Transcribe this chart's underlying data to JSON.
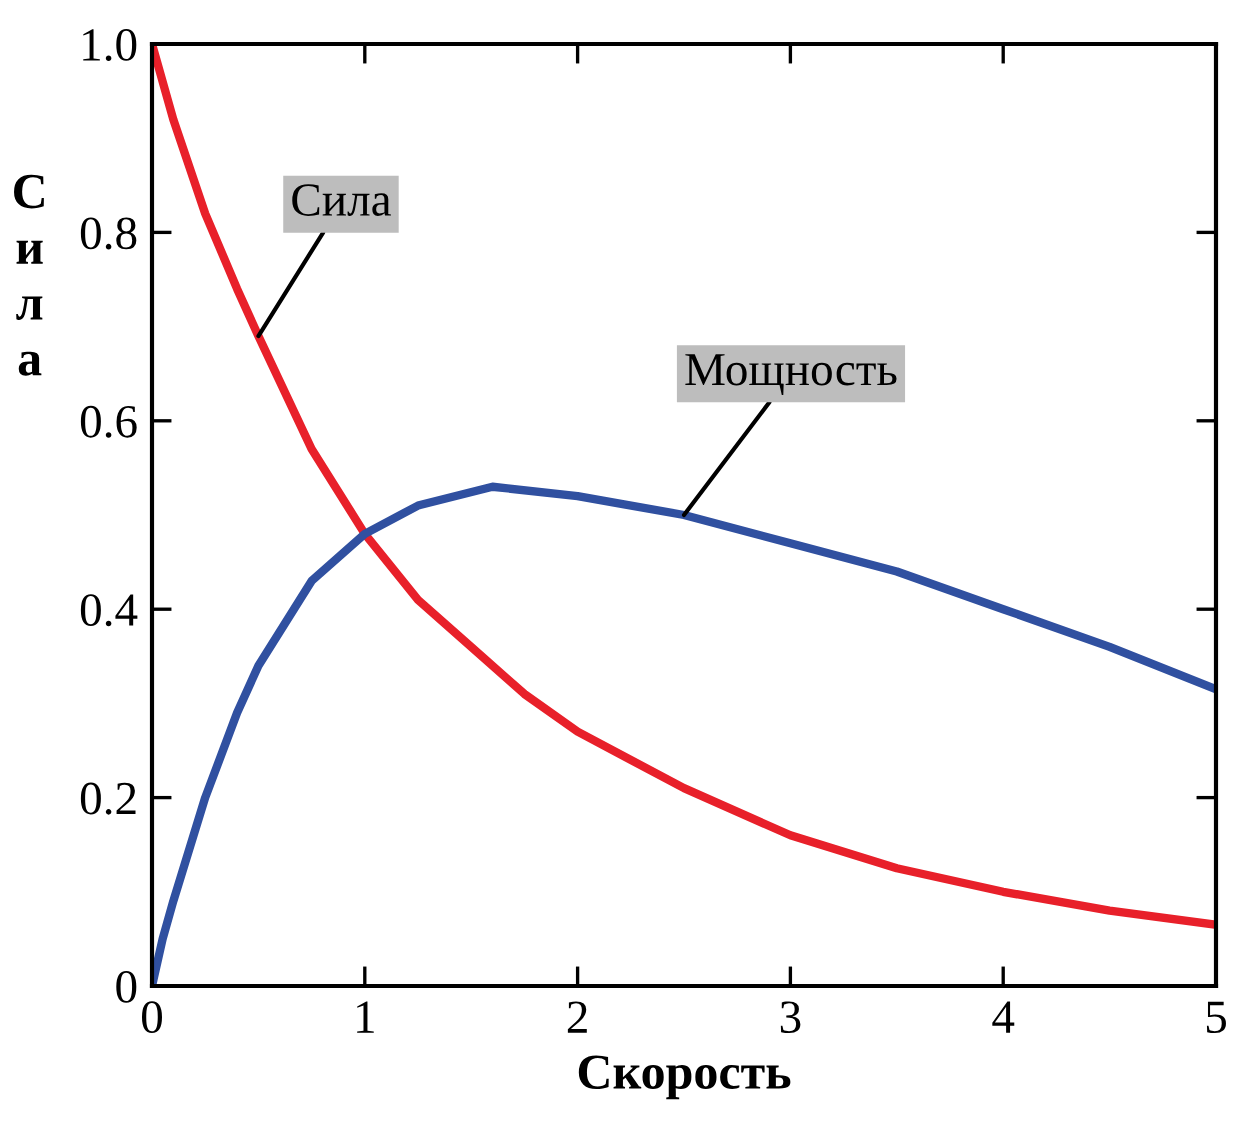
{
  "chart_data": {
    "type": "line",
    "xlabel": "Скорость",
    "ylabel": "Сила",
    "xlim": [
      0,
      5
    ],
    "ylim": [
      0,
      1
    ],
    "xticks": [
      0,
      1,
      2,
      3,
      4,
      5
    ],
    "yticks": [
      0,
      {
        "value": 0.2,
        "label": "0.2"
      },
      {
        "value": 0.4,
        "label": "0.4"
      },
      {
        "value": 0.6,
        "label": "0.6"
      },
      {
        "value": 0.8,
        "label": "0.8"
      },
      {
        "value": 1,
        "label": "1.0"
      }
    ],
    "grid": false,
    "legend": false,
    "marker": "none",
    "line_style": "solid",
    "series": [
      {
        "name": "Сила",
        "color": "#e8202a",
        "x": [
          0,
          0.1,
          0.25,
          0.4,
          0.5,
          0.75,
          1,
          1.25,
          1.5,
          1.75,
          2,
          2.5,
          3,
          3.5,
          4,
          4.5,
          5
        ],
        "values": [
          1.0,
          0.92,
          0.82,
          0.74,
          0.69,
          0.57,
          0.48,
          0.41,
          0.36,
          0.31,
          0.27,
          0.21,
          0.16,
          0.125,
          0.1,
          0.08,
          0.065
        ]
      },
      {
        "name": "Мощность",
        "color": "#3050a0",
        "x": [
          0,
          0.05,
          0.1,
          0.25,
          0.4,
          0.5,
          0.75,
          1,
          1.25,
          1.6,
          2,
          2.5,
          3,
          3.5,
          4,
          4.5,
          5
        ],
        "values": [
          0,
          0.05,
          0.09,
          0.2,
          0.29,
          0.34,
          0.43,
          0.48,
          0.51,
          0.53,
          0.52,
          0.5,
          0.47,
          0.44,
          0.4,
          0.36,
          0.315
        ]
      }
    ]
  }
}
